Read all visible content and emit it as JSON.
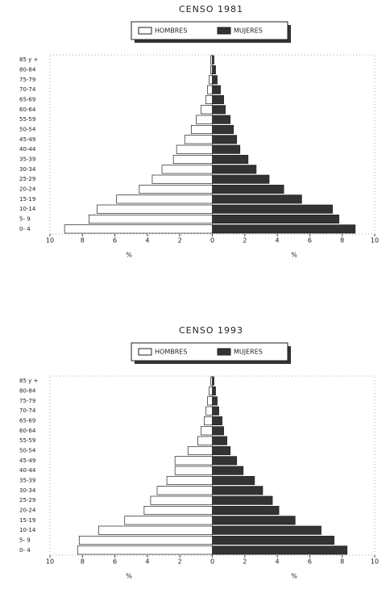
{
  "chart_data": [
    {
      "type": "pyramid",
      "title": "CENSO 1981",
      "categories": [
        "0- 4",
        "5- 9",
        "10-14",
        "15-19",
        "20-24",
        "25-29",
        "30-34",
        "35-39",
        "40-44",
        "45-49",
        "50-54",
        "55-59",
        "60-64",
        "65-69",
        "70-74",
        "75-79",
        "80-84",
        "85 y +"
      ],
      "series": [
        {
          "name": "HOMBRES",
          "color": "#ffffff",
          "values": [
            9.1,
            7.6,
            7.1,
            5.9,
            4.5,
            3.7,
            3.1,
            2.4,
            2.2,
            1.7,
            1.3,
            1.0,
            0.7,
            0.4,
            0.3,
            0.2,
            0.1,
            0.1
          ]
        },
        {
          "name": "MUJERES",
          "color": "#333333",
          "values": [
            8.8,
            7.8,
            7.4,
            5.5,
            4.4,
            3.5,
            2.7,
            2.2,
            1.7,
            1.5,
            1.3,
            1.1,
            0.8,
            0.7,
            0.5,
            0.3,
            0.2,
            0.1
          ]
        }
      ],
      "xlabels": [
        "%",
        "%"
      ],
      "xlim": [
        -10,
        10
      ],
      "xticks": [
        {
          "value": -10,
          "label": "10"
        },
        {
          "value": -8,
          "label": "8"
        },
        {
          "value": -6,
          "label": "6"
        },
        {
          "value": -4,
          "label": "4"
        },
        {
          "value": -2,
          "label": "2"
        },
        0,
        2,
        4,
        6,
        8,
        10
      ]
    },
    {
      "type": "pyramid",
      "title": "CENSO 1993",
      "categories": [
        "0- 4",
        "5- 9",
        "10-14",
        "15-19",
        "20-24",
        "25-29",
        "30-34",
        "35-39",
        "40-44",
        "45-49",
        "50-54",
        "55-59",
        "60-64",
        "65-69",
        "70-74",
        "75-79",
        "80-84",
        "85 y +"
      ],
      "series": [
        {
          "name": "HOMBRES",
          "color": "#ffffff",
          "values": [
            8.3,
            8.2,
            7.0,
            5.4,
            4.2,
            3.8,
            3.4,
            2.8,
            2.3,
            2.3,
            1.5,
            0.9,
            0.7,
            0.5,
            0.4,
            0.3,
            0.2,
            0.1
          ]
        },
        {
          "name": "MUJERES",
          "color": "#333333",
          "values": [
            8.3,
            7.5,
            6.7,
            5.1,
            4.1,
            3.7,
            3.1,
            2.6,
            1.9,
            1.5,
            1.1,
            0.9,
            0.7,
            0.6,
            0.4,
            0.3,
            0.2,
            0.1
          ]
        }
      ],
      "xlabels": [
        "%",
        "%"
      ],
      "xlim": [
        -10,
        10
      ],
      "xticks": [
        {
          "value": -10,
          "label": "10"
        },
        {
          "value": -8,
          "label": "8"
        },
        {
          "value": -6,
          "label": "6"
        },
        {
          "value": -4,
          "label": "4"
        },
        {
          "value": -2,
          "label": "2"
        },
        0,
        2,
        4,
        6,
        8,
        10
      ]
    }
  ]
}
